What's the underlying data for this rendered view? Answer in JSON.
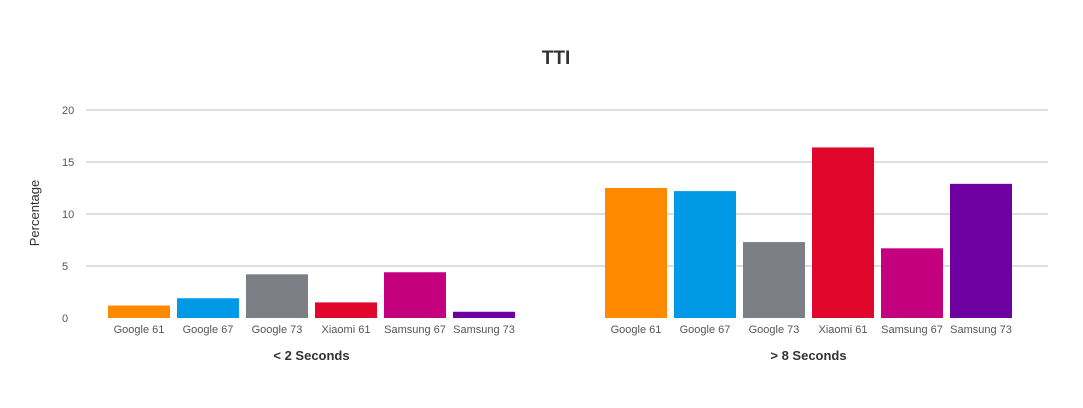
{
  "chart_data": {
    "type": "bar",
    "title": "TTI",
    "ylabel": "Percentage",
    "ylim": [
      0,
      20
    ],
    "yticks": [
      0,
      5,
      10,
      15,
      20
    ],
    "grid": true,
    "groups": [
      {
        "label": "< 2 Seconds",
        "categories": [
          "Google 61",
          "Google 67",
          "Google 73",
          "Xiaomi 61",
          "Samsung 67",
          "Samsung 73"
        ],
        "values": [
          1.2,
          1.9,
          4.2,
          1.5,
          4.4,
          0.6
        ]
      },
      {
        "label": "> 8 Seconds",
        "categories": [
          "Google 61",
          "Google 67",
          "Google 73",
          "Xiaomi 61",
          "Samsung 67",
          "Samsung 73"
        ],
        "values": [
          12.5,
          12.2,
          7.3,
          16.4,
          6.7,
          12.9
        ]
      }
    ],
    "colors": [
      "#ff8a00",
      "#0099e5",
      "#7d7f87",
      "#e0062c",
      "#c4007f",
      "#6e00a2"
    ]
  }
}
